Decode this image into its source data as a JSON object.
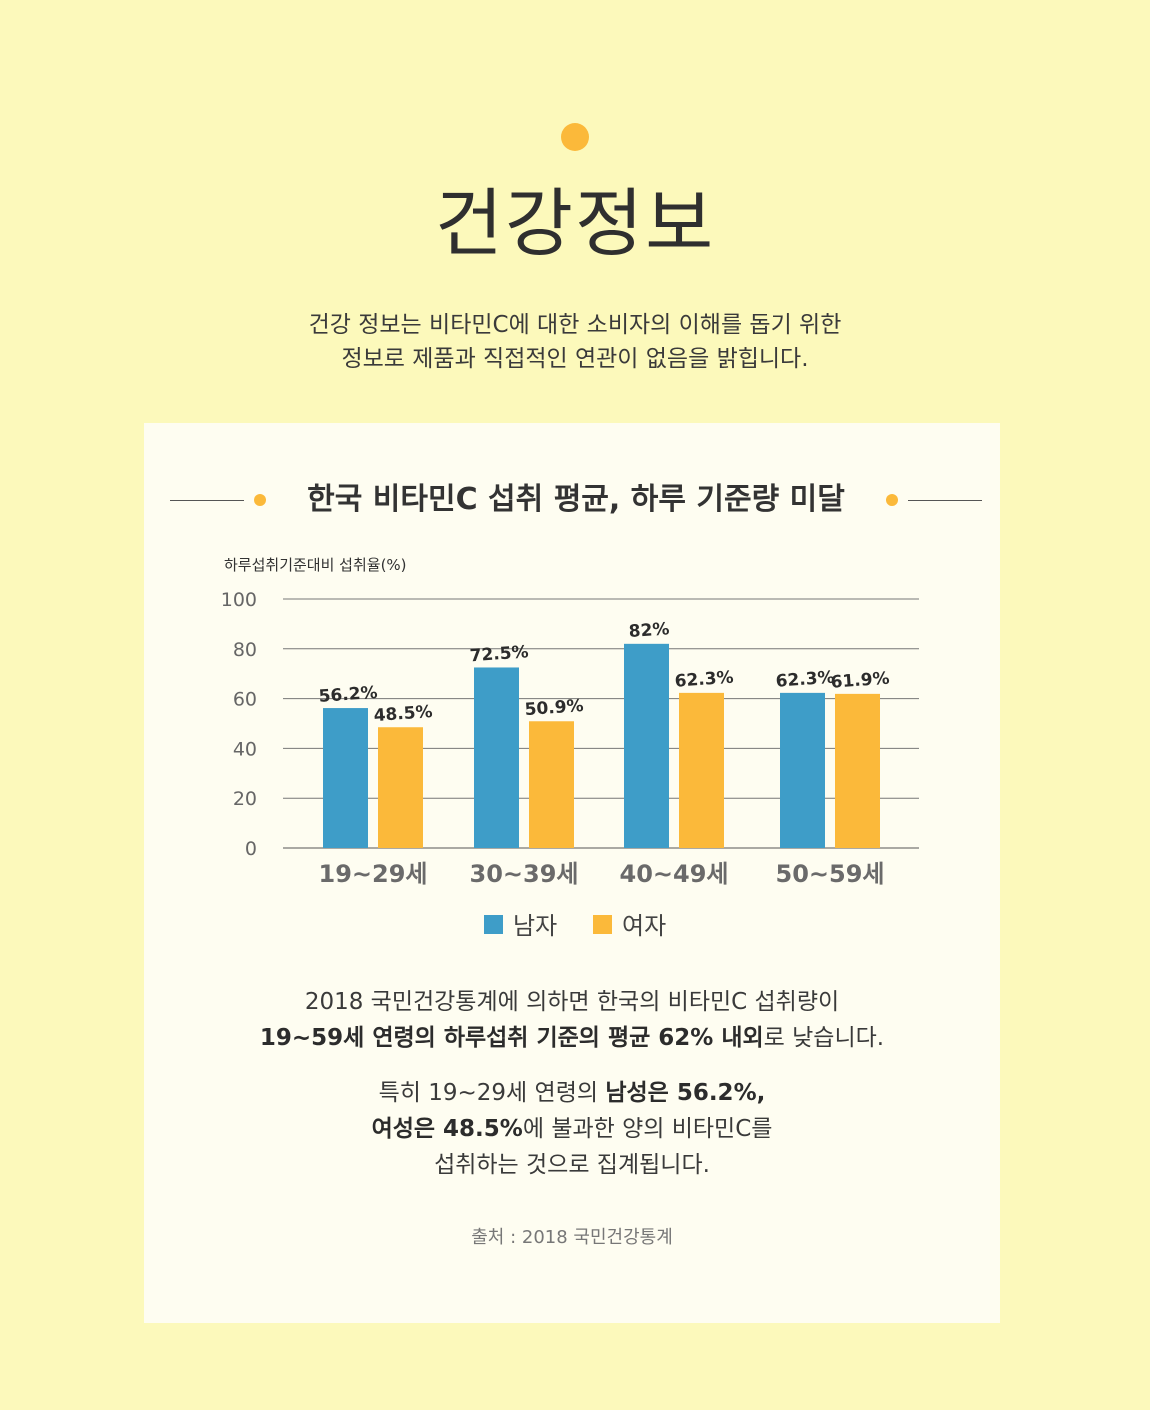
{
  "header": {
    "title": "건강정보",
    "intro_line1": "건강 정보는 비타민C에 대한 소비자의 이해를 돕기 위한",
    "intro_line2": "정보로 제품과 직접적인 연관이 없음을 밝힙니다."
  },
  "colors": {
    "background": "#fcf9bb",
    "card": "#fefdf1",
    "male": "#3e9dc8",
    "female": "#fbb93a",
    "accent_dot": "#fbb93a"
  },
  "chart_data": {
    "type": "bar",
    "title": "한국 비타민C 섭취 평균, 하루 기준량 미달",
    "ylabel": "하루섭취기준대비 섭취율(%)",
    "xlabel": "",
    "ylim": [
      0,
      100
    ],
    "yticks": [
      0,
      20,
      40,
      60,
      80,
      100
    ],
    "grid": true,
    "legend_position": "bottom-center",
    "categories": [
      "19~29세",
      "30~39세",
      "40~49세",
      "50~59세"
    ],
    "series": [
      {
        "name": "남자",
        "color": "#3e9dc8",
        "values": [
          56.2,
          72.5,
          82,
          62.3
        ],
        "labels": [
          "56.2%",
          "72.5%",
          "82%",
          "62.3%"
        ]
      },
      {
        "name": "여자",
        "color": "#fbb93a",
        "values": [
          48.5,
          50.9,
          62.3,
          61.9
        ],
        "labels": [
          "48.5%",
          "50.9%",
          "62.3%",
          "61.9%"
        ]
      }
    ]
  },
  "summary": {
    "p1_line1": "2018 국민건강통계에 의하면 한국의 비타민C 섭취량이",
    "p1_line2_bold": "19~59세 연령의 하루섭취 기준의 평균 62% 내외",
    "p1_line2_rest": "로 낮습니다.",
    "p2_line1_a": "특히 19~29세 연령의 ",
    "p2_line1_bold": "남성은 56.2%,",
    "p2_line2_bold": "여성은 48.5%",
    "p2_line2_rest": "에 불과한 양의 비타민C를",
    "p2_line3": "섭취하는 것으로 집계됩니다."
  },
  "source": "출처 : 2018 국민건강통계"
}
